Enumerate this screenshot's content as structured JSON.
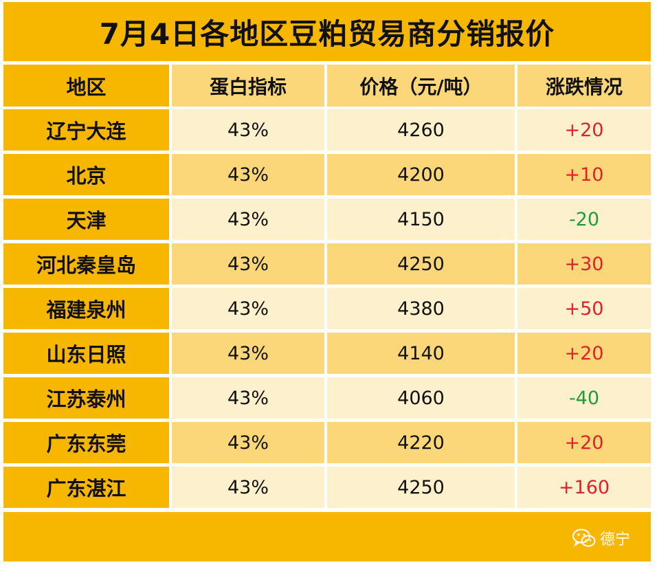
{
  "title": "7月4日各地区豆粕贸易商分销报价",
  "headers": [
    "地区",
    "蛋白指标",
    "价格（元/吨）",
    "涨跌情况"
  ],
  "rows": [
    {
      "region": "辽宁大连",
      "protein": "43%",
      "price": "4260",
      "change": "+20",
      "dir": "up"
    },
    {
      "region": "北京",
      "protein": "43%",
      "price": "4200",
      "change": "+10",
      "dir": "up"
    },
    {
      "region": "天津",
      "protein": "43%",
      "price": "4150",
      "change": "-20",
      "dir": "down"
    },
    {
      "region": "河北秦皇岛",
      "protein": "43%",
      "price": "4250",
      "change": "+30",
      "dir": "up"
    },
    {
      "region": "福建泉州",
      "protein": "43%",
      "price": "4380",
      "change": "+50",
      "dir": "up"
    },
    {
      "region": "山东日照",
      "protein": "43%",
      "price": "4140",
      "change": "+20",
      "dir": "up"
    },
    {
      "region": "江苏泰州",
      "protein": "43%",
      "price": "4060",
      "change": "-40",
      "dir": "down"
    },
    {
      "region": "广东东莞",
      "protein": "43%",
      "price": "4220",
      "change": "+20",
      "dir": "up"
    },
    {
      "region": "广东湛江",
      "protein": "43%",
      "price": "4250",
      "change": "+160",
      "dir": "up"
    }
  ],
  "watermark": {
    "text": "德宁",
    "icon": "wechat-icon"
  },
  "colors": {
    "gold": "#f7b600",
    "up": "#e0202a",
    "down": "#1f9a3c"
  }
}
